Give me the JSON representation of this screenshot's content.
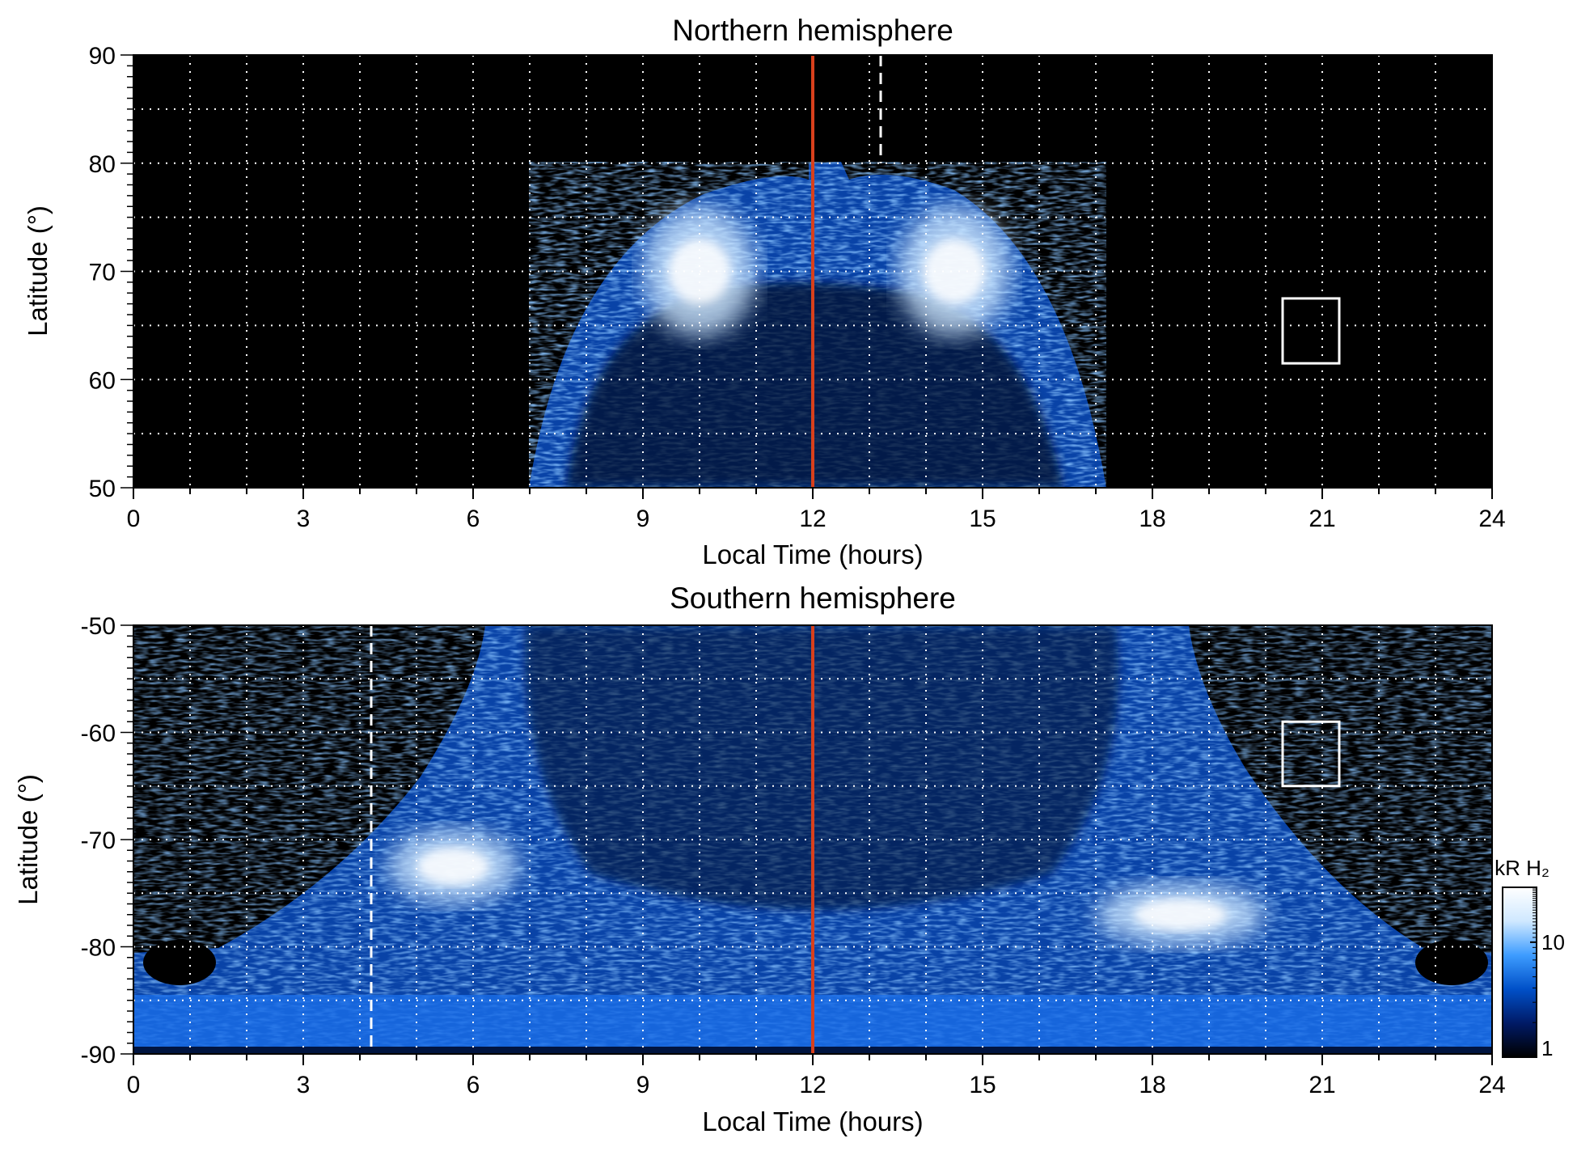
{
  "chart_data": [
    {
      "type": "heatmap",
      "title": "Northern hemisphere",
      "xlabel": "Local Time (hours)",
      "ylabel": "Latitude (°)",
      "xlim": [
        0,
        24
      ],
      "ylim": [
        50,
        90
      ],
      "xticks": [
        "0",
        "3",
        "6",
        "9",
        "12",
        "15",
        "18",
        "21",
        "24"
      ],
      "yticks": [
        "50",
        "60",
        "70",
        "80",
        "90"
      ],
      "grid": true,
      "noon_line_x": 12,
      "dashed_line_x": 13.2,
      "box": {
        "x": [
          20.3,
          21.3
        ],
        "y": [
          61.5,
          67.5
        ]
      },
      "emission_region": {
        "x": [
          7.0,
          17.2
        ],
        "y_max": 80
      },
      "bright_arcs": [
        {
          "x": [
            9.0,
            11.0
          ],
          "y": [
            64,
            76
          ]
        },
        {
          "x": [
            13.5,
            15.5
          ],
          "y": [
            64,
            76
          ]
        }
      ]
    },
    {
      "type": "heatmap",
      "title": "Southern hemisphere",
      "xlabel": "Local Time (hours)",
      "ylabel": "Latitude (°)",
      "xlim": [
        0,
        24
      ],
      "ylim": [
        -90,
        -50
      ],
      "xticks": [
        "0",
        "3",
        "6",
        "9",
        "12",
        "15",
        "18",
        "21",
        "24"
      ],
      "yticks": [
        "-50",
        "-60",
        "-70",
        "-80",
        "-90"
      ],
      "grid": true,
      "noon_line_x": 12,
      "dashed_line_x": 4.2,
      "box": {
        "x": [
          20.3,
          21.3
        ],
        "y": [
          -65,
          -59
        ]
      },
      "emission_region": {
        "x": [
          0,
          24
        ],
        "y_min": -90
      },
      "bright_arcs": [
        {
          "x": [
            4.5,
            6.8
          ],
          "y": [
            -76,
            -69
          ]
        },
        {
          "x": [
            17.0,
            20.0
          ],
          "y": [
            -80,
            -74
          ]
        }
      ]
    }
  ],
  "colorbar": {
    "label": "kR H₂",
    "ticks": [
      {
        "value": 1,
        "label": "1"
      },
      {
        "value": 10,
        "label": "10"
      }
    ],
    "range": [
      1,
      30
    ],
    "scale": "log",
    "colors": [
      "#000000",
      "#001a66",
      "#0050c8",
      "#3d9cff",
      "#cfe8ff",
      "#ffffff"
    ]
  },
  "colors": {
    "noon_line": "#d8401c",
    "guides": "#ffffff",
    "background": "#000000"
  }
}
